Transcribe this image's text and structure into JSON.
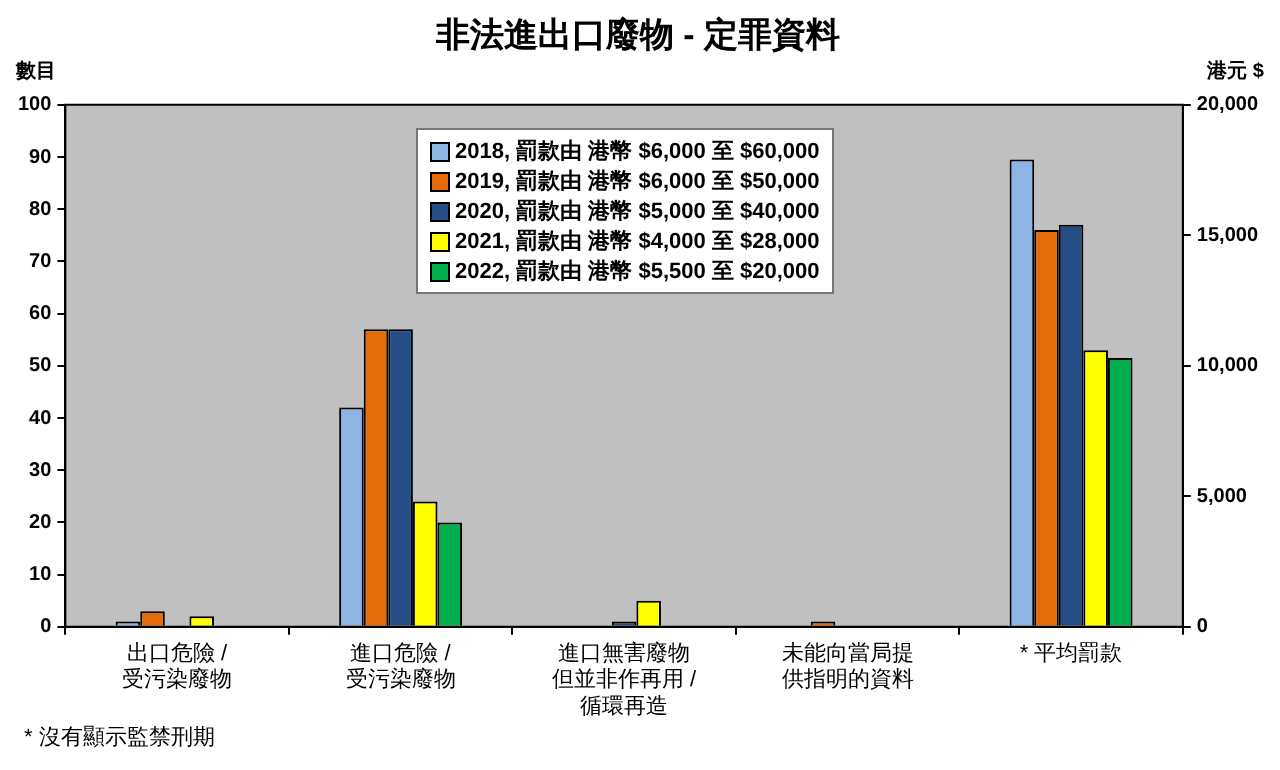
{
  "chart_data": {
    "type": "bar",
    "title": "非法進出口廢物 - 定罪資料",
    "ylabel": "數目",
    "y2label": "港元 $",
    "categories": [
      "出口危險 /\n受污染廢物",
      "進口危險 /\n受污染廢物",
      "進口無害廢物但並非作再用 /\n循環再造",
      "未能向當局提供指明的資料",
      "* 平均罰款"
    ],
    "series": [
      {
        "name": "2018, 罰款由 港幣 $6,000 至 $60,000",
        "color": "#8db4e2",
        "values": [
          1,
          42,
          0,
          0,
          null
        ]
      },
      {
        "name": "2019, 罰款由 港幣 $6,000 至 $50,000",
        "color": "#e46c0a",
        "values": [
          3,
          57,
          0,
          1,
          null
        ]
      },
      {
        "name": "2020, 罰款由 港幣 $5,000 至 $40,000",
        "color": "#254e86",
        "values": [
          0,
          57,
          1,
          0,
          null
        ]
      },
      {
        "name": "2021, 罰款由 港幣 $4,000 至 $28,000",
        "color": "#ffff00",
        "values": [
          2,
          24,
          5,
          0,
          null
        ]
      },
      {
        "name": "2022, 罰款由 港幣 $5,500 至 $20,000",
        "color": "#00b050",
        "values": [
          0,
          20,
          0,
          0,
          null
        ]
      },
      {
        "color": "#8db4e2",
        "axis": "y2",
        "values": [
          null,
          null,
          null,
          null,
          17900
        ]
      },
      {
        "color": "#e46c0a",
        "axis": "y2",
        "values": [
          null,
          null,
          null,
          null,
          15200
        ]
      },
      {
        "color": "#254e86",
        "axis": "y2",
        "values": [
          null,
          null,
          null,
          null,
          15400
        ]
      },
      {
        "color": "#ffff00",
        "axis": "y2",
        "values": [
          null,
          null,
          null,
          null,
          10600
        ]
      },
      {
        "color": "#00b050",
        "axis": "y2",
        "values": [
          null,
          null,
          null,
          null,
          10300
        ]
      }
    ],
    "ylim": [
      0,
      100
    ],
    "yticks": [
      0,
      10,
      20,
      30,
      40,
      50,
      60,
      70,
      80,
      90,
      100
    ],
    "y2lim": [
      0,
      20000
    ],
    "y2ticks": [
      {
        "value": 0,
        "label": "0"
      },
      {
        "value": 5000,
        "label": "5,000"
      },
      {
        "value": 10000,
        "label": "10,000"
      },
      {
        "value": 15000,
        "label": "15,000"
      },
      {
        "value": 20000,
        "label": "20,000"
      }
    ],
    "grid": false,
    "legend": "top",
    "annotations": [
      "* 沒有顯示監禁刑期"
    ]
  }
}
